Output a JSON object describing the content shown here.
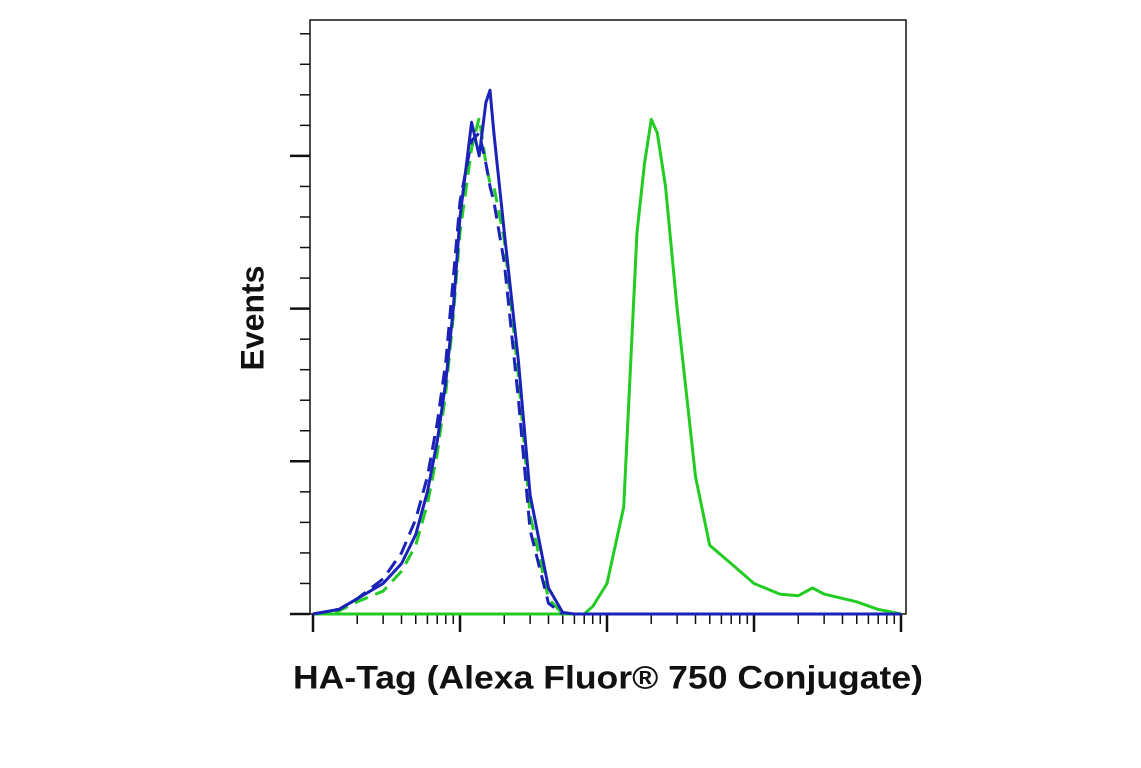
{
  "chart_data": {
    "type": "line",
    "xlabel": "HA-Tag (Alexa Fluor® 750 Conjugate)",
    "ylabel": "Events",
    "xscale": "log",
    "xlim": [
      1,
      10000
    ],
    "ylim": [
      0,
      3.89
    ],
    "xticks": [
      1,
      10,
      100,
      1000,
      10000
    ],
    "xminorticks": [
      2,
      3,
      4,
      5,
      6,
      7,
      8,
      9,
      20,
      30,
      40,
      50,
      60,
      70,
      80,
      90,
      200,
      300,
      400,
      500,
      600,
      700,
      800,
      900,
      2000,
      3000,
      4000,
      5000,
      6000,
      7000,
      8000,
      9000
    ],
    "yticks": [
      0,
      1,
      2,
      3
    ],
    "yminorticks": [
      0.2,
      0.4,
      0.6,
      0.8,
      1.2,
      1.4,
      1.6,
      1.8,
      2.2,
      2.4,
      2.6,
      2.8,
      3.2,
      3.4,
      3.6,
      3.8
    ],
    "x": [
      1,
      1.5,
      2,
      3,
      4,
      5,
      6,
      7,
      8,
      9,
      10,
      12,
      13.5,
      15,
      16,
      17,
      20,
      25,
      30,
      40,
      50,
      60,
      70,
      80,
      100,
      130,
      160,
      180,
      200,
      220,
      250,
      300,
      400,
      500,
      700,
      1000,
      1500,
      2000,
      2500,
      3000,
      5000,
      7000,
      10000
    ],
    "series": [
      {
        "color": "#22cc22",
        "dashed": false,
        "values": [
          0,
          0,
          0,
          0,
          0,
          0,
          0,
          0,
          0,
          0,
          0,
          0,
          0,
          0,
          0,
          0,
          0,
          0,
          0,
          0,
          0,
          0,
          0,
          0.05,
          0.2,
          0.7,
          2.5,
          2.95,
          3.24,
          3.15,
          2.8,
          2.0,
          0.9,
          0.45,
          0.33,
          0.2,
          0.13,
          0.12,
          0.17,
          0.13,
          0.08,
          0.03,
          0
        ]
      },
      {
        "color": "#22cc22",
        "dashed": true,
        "values": [
          0,
          0.02,
          0.08,
          0.15,
          0.28,
          0.45,
          0.72,
          1.05,
          1.45,
          1.95,
          2.5,
          3.05,
          3.25,
          2.95,
          2.82,
          2.8,
          2.45,
          1.55,
          0.65,
          0.1,
          0,
          null,
          null,
          null,
          null,
          null,
          null,
          null,
          null,
          null,
          null,
          null,
          null,
          null,
          null,
          null,
          null,
          null,
          null,
          null,
          null,
          null,
          null
        ]
      },
      {
        "color": "#1a22b8",
        "dashed": true,
        "values": [
          0,
          0.03,
          0.1,
          0.23,
          0.4,
          0.62,
          0.9,
          1.25,
          1.65,
          2.2,
          2.7,
          3.1,
          3.15,
          2.95,
          2.8,
          2.7,
          2.3,
          1.4,
          0.55,
          0.07,
          0,
          null,
          null,
          null,
          null,
          null,
          null,
          null,
          null,
          null,
          null,
          null,
          null,
          null,
          null,
          null,
          null,
          null,
          null,
          null,
          null,
          null,
          null
        ]
      },
      {
        "color": "#1a22b8",
        "dashed": false,
        "values": [
          0,
          0.03,
          0.1,
          0.2,
          0.33,
          0.52,
          0.8,
          1.13,
          1.52,
          2.0,
          2.6,
          3.22,
          3.0,
          3.35,
          3.43,
          3.15,
          2.5,
          1.65,
          0.78,
          0.17,
          0.01,
          0,
          0,
          0,
          0,
          0,
          0,
          0,
          0,
          0,
          0,
          0,
          0,
          0,
          0,
          0,
          0,
          0,
          0,
          0,
          0,
          0,
          0
        ]
      }
    ]
  }
}
